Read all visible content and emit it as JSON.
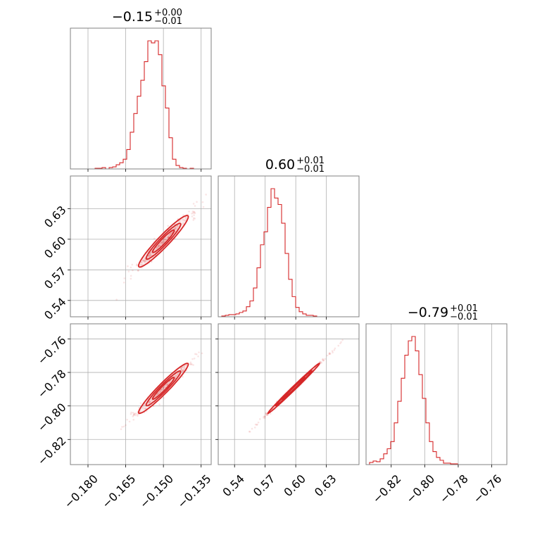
{
  "chart_data": {
    "type": "corner",
    "color": "#d62728",
    "grid": true,
    "parameters": [
      {
        "range": [
          -0.187,
          -0.131
        ],
        "ticks": [
          -0.18,
          -0.165,
          -0.15,
          -0.135
        ],
        "tick_labels": [
          "−0.180",
          "−0.165",
          "−0.150",
          "−0.135"
        ],
        "title": {
          "median": "−0.15",
          "plus": "+0.00",
          "minus": "−0.01"
        },
        "mean": -0.15,
        "sd": 0.0043
      },
      {
        "range": [
          0.524,
          0.662
        ],
        "ticks": [
          0.54,
          0.57,
          0.6,
          0.63
        ],
        "tick_labels": [
          "0.54",
          "0.57",
          "0.60",
          "0.63"
        ],
        "title": {
          "median": "0.60",
          "plus": "+0.01",
          "minus": "−0.01"
        },
        "mean": 0.598,
        "sd": 0.011
      },
      {
        "range": [
          -0.835,
          -0.751
        ],
        "ticks": [
          -0.82,
          -0.8,
          -0.78,
          -0.76
        ],
        "tick_labels": [
          "−0.82",
          "−0.80",
          "−0.78",
          "−0.76"
        ],
        "title": {
          "median": "−0.79",
          "plus": "+0.01",
          "minus": "−0.01"
        },
        "mean": -0.7895,
        "sd": 0.0065
      }
    ],
    "histograms": [
      {
        "param": 0,
        "counts": [
          0,
          0,
          0,
          0,
          0,
          0,
          0,
          1,
          1,
          2,
          0,
          2,
          3,
          6,
          9,
          14,
          28,
          53,
          80,
          105,
          128,
          155,
          185,
          182,
          185,
          165,
          120,
          88,
          45,
          14,
          5,
          2,
          1,
          0,
          1,
          0,
          0,
          0,
          0,
          0
        ]
      },
      {
        "param": 1,
        "counts": [
          0,
          1,
          2,
          3,
          3,
          4,
          6,
          8,
          14,
          22,
          40,
          68,
          100,
          118,
          152,
          178,
          165,
          156,
          130,
          88,
          52,
          28,
          13,
          7,
          4,
          2,
          2,
          1,
          0,
          0,
          0,
          0,
          0,
          0,
          0,
          0,
          0,
          0,
          0,
          0
        ]
      },
      {
        "param": 2,
        "counts": [
          0,
          3,
          5,
          4,
          8,
          15,
          22,
          32,
          58,
          88,
          120,
          152,
          172,
          178,
          158,
          125,
          92,
          58,
          32,
          18,
          10,
          6,
          2,
          2,
          1,
          1,
          0,
          0,
          0,
          0,
          0,
          0,
          0,
          0,
          0,
          0,
          0,
          0,
          0,
          0
        ]
      }
    ],
    "correlations": {
      "p1_p0": 0.95,
      "p2_p0": 0.96,
      "p2_p1": 0.995
    }
  }
}
